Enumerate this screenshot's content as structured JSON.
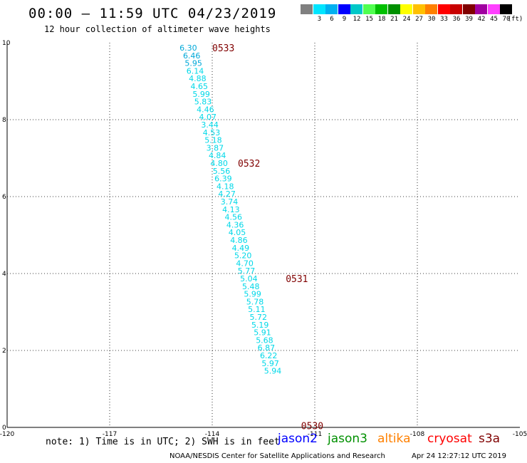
{
  "header": {
    "title": "00:00 – 11:59 UTC 04/23/2019",
    "subtitle": "12 hour collection of altimeter wave heights"
  },
  "color_scale": {
    "unit": "(ft)",
    "items": [
      {
        "label": "",
        "color": "#808080"
      },
      {
        "label": "3",
        "color": "#00e5ff"
      },
      {
        "label": "6",
        "color": "#00b0f0"
      },
      {
        "label": "9",
        "color": "#0000ff"
      },
      {
        "label": "12",
        "color": "#00c8c8"
      },
      {
        "label": "15",
        "color": "#50ff50"
      },
      {
        "label": "18",
        "color": "#00c000"
      },
      {
        "label": "21",
        "color": "#009000"
      },
      {
        "label": "24",
        "color": "#ffff00"
      },
      {
        "label": "27",
        "color": "#ffc000"
      },
      {
        "label": "30",
        "color": "#ff8000"
      },
      {
        "label": "33",
        "color": "#ff0000"
      },
      {
        "label": "36",
        "color": "#c80000"
      },
      {
        "label": "39",
        "color": "#800000"
      },
      {
        "label": "42",
        "color": "#a000a0"
      },
      {
        "label": "45",
        "color": "#ff40ff"
      },
      {
        "label": "70",
        "color": "#000000"
      }
    ]
  },
  "chart_data": {
    "type": "scatter",
    "x_ticks": [
      -120,
      -117,
      -114,
      -111,
      -108,
      -105
    ],
    "x_tick_labels": [
      "-120",
      "-117",
      "-114",
      "-111",
      "-108",
      "-105"
    ],
    "y_ticks": [
      0,
      2,
      4,
      6,
      8,
      10
    ],
    "y_tick_labels": [
      "0",
      "2",
      "4",
      "6",
      "8",
      "10"
    ],
    "xlim": [
      -120,
      -105
    ],
    "ylim": [
      0,
      10
    ],
    "grid": true,
    "point_color": "#00d8e8",
    "point_color_alt": "#00a8d8",
    "time_label_color": "#800000",
    "points": [
      {
        "lon": -114.7,
        "lat": 9.87,
        "swh": "6.30"
      },
      {
        "lon": -114.6,
        "lat": 9.67,
        "swh": "6.46"
      },
      {
        "lon": -114.55,
        "lat": 9.47,
        "swh": "5.95"
      },
      {
        "lon": -114.5,
        "lat": 9.27,
        "swh": "6.14"
      },
      {
        "lon": -114.43,
        "lat": 9.07,
        "swh": "4.88"
      },
      {
        "lon": -114.38,
        "lat": 8.87,
        "swh": "4.65"
      },
      {
        "lon": -114.32,
        "lat": 8.67,
        "swh": "5.99"
      },
      {
        "lon": -114.27,
        "lat": 8.47,
        "swh": "5.83"
      },
      {
        "lon": -114.2,
        "lat": 8.27,
        "swh": "4.46"
      },
      {
        "lon": -114.13,
        "lat": 8.07,
        "swh": "4.07"
      },
      {
        "lon": -114.07,
        "lat": 7.87,
        "swh": "3.44"
      },
      {
        "lon": -114.02,
        "lat": 7.67,
        "swh": "4.53"
      },
      {
        "lon": -113.97,
        "lat": 7.47,
        "swh": "5.18"
      },
      {
        "lon": -113.92,
        "lat": 7.27,
        "swh": "3.87"
      },
      {
        "lon": -113.85,
        "lat": 7.07,
        "swh": "4.84"
      },
      {
        "lon": -113.8,
        "lat": 6.87,
        "swh": "4.80"
      },
      {
        "lon": -113.73,
        "lat": 6.67,
        "swh": "5.56"
      },
      {
        "lon": -113.68,
        "lat": 6.47,
        "swh": "6.39"
      },
      {
        "lon": -113.62,
        "lat": 6.27,
        "swh": "4.18"
      },
      {
        "lon": -113.57,
        "lat": 6.07,
        "swh": "4.27"
      },
      {
        "lon": -113.5,
        "lat": 5.87,
        "swh": "3.74"
      },
      {
        "lon": -113.45,
        "lat": 5.67,
        "swh": "4.13"
      },
      {
        "lon": -113.38,
        "lat": 5.47,
        "swh": "4.56"
      },
      {
        "lon": -113.33,
        "lat": 5.27,
        "swh": "4.36"
      },
      {
        "lon": -113.27,
        "lat": 5.07,
        "swh": "4.05"
      },
      {
        "lon": -113.22,
        "lat": 4.87,
        "swh": "4.86"
      },
      {
        "lon": -113.17,
        "lat": 4.67,
        "swh": "4.49"
      },
      {
        "lon": -113.1,
        "lat": 4.47,
        "swh": "5.20"
      },
      {
        "lon": -113.05,
        "lat": 4.27,
        "swh": "4.70"
      },
      {
        "lon": -113.0,
        "lat": 4.07,
        "swh": "5.77"
      },
      {
        "lon": -112.93,
        "lat": 3.87,
        "swh": "5.04"
      },
      {
        "lon": -112.87,
        "lat": 3.67,
        "swh": "5.48"
      },
      {
        "lon": -112.82,
        "lat": 3.47,
        "swh": "5.99"
      },
      {
        "lon": -112.75,
        "lat": 3.27,
        "swh": "5.78"
      },
      {
        "lon": -112.7,
        "lat": 3.07,
        "swh": "5.11"
      },
      {
        "lon": -112.65,
        "lat": 2.87,
        "swh": "5.72"
      },
      {
        "lon": -112.6,
        "lat": 2.67,
        "swh": "5.19"
      },
      {
        "lon": -112.53,
        "lat": 2.47,
        "swh": "5.91"
      },
      {
        "lon": -112.47,
        "lat": 2.27,
        "swh": "5.68"
      },
      {
        "lon": -112.42,
        "lat": 2.07,
        "swh": "6.87"
      },
      {
        "lon": -112.35,
        "lat": 1.87,
        "swh": "6.22"
      },
      {
        "lon": -112.3,
        "lat": 1.67,
        "swh": "5.97"
      },
      {
        "lon": -112.23,
        "lat": 1.47,
        "swh": "5.94"
      }
    ],
    "time_labels": [
      {
        "lon": -114.0,
        "lat": 9.87,
        "label": "0533"
      },
      {
        "lon": -113.25,
        "lat": 6.87,
        "label": "0532"
      },
      {
        "lon": -111.85,
        "lat": 3.87,
        "label": "0531"
      },
      {
        "lon": -111.4,
        "lat": 0.05,
        "label": "0530"
      }
    ]
  },
  "footer": {
    "note": "note: 1) Time is in UTC; 2) SWH is in feet",
    "satellites": [
      {
        "name": "jason2",
        "color": "#0000ff"
      },
      {
        "name": "jason3",
        "color": "#009000"
      },
      {
        "name": "altika",
        "color": "#ff8000"
      },
      {
        "name": "cryosat",
        "color": "#ff0000"
      },
      {
        "name": "s3a",
        "color": "#800000"
      }
    ],
    "credit": "NOAA/NESDIS Center for Satellite Applications and Research",
    "timestamp": "Apr 24 12:27:12 UTC 2019"
  }
}
